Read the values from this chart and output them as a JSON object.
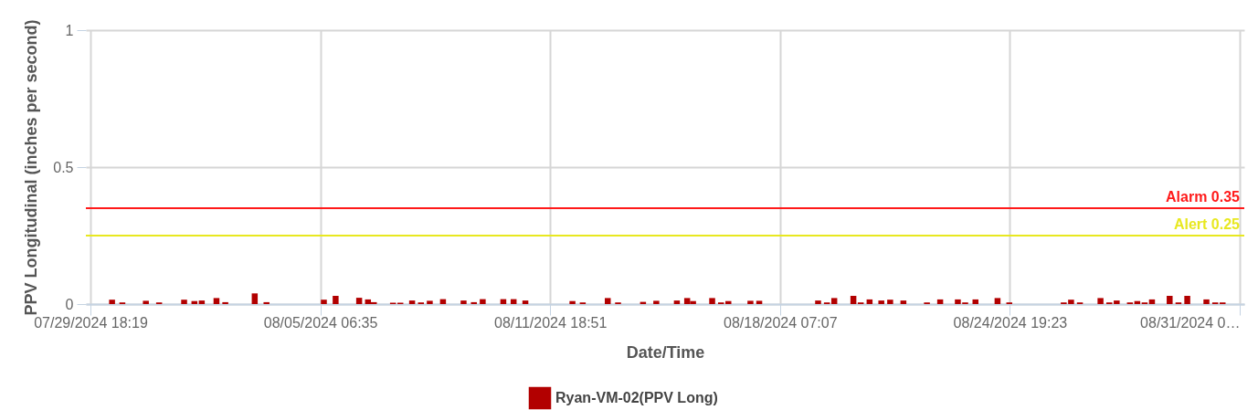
{
  "chart_data": {
    "type": "bar",
    "xlabel": "Date/Time",
    "ylabel": "PPV Longitudinal (inches per second)",
    "x": [
      "2024-07-30T09:00",
      "2024-07-30T16:00",
      "2024-07-31T08:00",
      "2024-07-31T17:00",
      "2024-08-01T10:00",
      "2024-08-01T17:00",
      "2024-08-01T22:00",
      "2024-08-02T08:00",
      "2024-08-02T14:00",
      "2024-08-03T10:00",
      "2024-08-03T18:00",
      "2024-08-05T09:00",
      "2024-08-05T17:00",
      "2024-08-06T09:00",
      "2024-08-06T15:00",
      "2024-08-06T19:00",
      "2024-08-07T08:00",
      "2024-08-07T13:00",
      "2024-08-07T21:00",
      "2024-08-08T03:00",
      "2024-08-08T09:00",
      "2024-08-08T18:00",
      "2024-08-09T08:00",
      "2024-08-09T15:00",
      "2024-08-09T21:00",
      "2024-08-10T11:00",
      "2024-08-10T18:00",
      "2024-08-11T02:00",
      "2024-08-12T10:00",
      "2024-08-12T17:00",
      "2024-08-13T10:00",
      "2024-08-13T17:00",
      "2024-08-14T10:00",
      "2024-08-14T19:00",
      "2024-08-15T09:00",
      "2024-08-15T16:00",
      "2024-08-15T20:00",
      "2024-08-16T09:00",
      "2024-08-16T15:00",
      "2024-08-16T20:00",
      "2024-08-17T11:00",
      "2024-08-17T17:00",
      "2024-08-19T09:00",
      "2024-08-19T15:00",
      "2024-08-19T20:00",
      "2024-08-20T09:00",
      "2024-08-20T14:00",
      "2024-08-20T20:00",
      "2024-08-21T04:00",
      "2024-08-21T10:00",
      "2024-08-21T19:00",
      "2024-08-22T11:00",
      "2024-08-22T20:00",
      "2024-08-23T08:00",
      "2024-08-23T13:00",
      "2024-08-23T20:00",
      "2024-08-24T11:00",
      "2024-08-24T19:00",
      "2024-08-26T08:00",
      "2024-08-26T13:00",
      "2024-08-26T19:00",
      "2024-08-27T09:00",
      "2024-08-27T15:00",
      "2024-08-27T20:00",
      "2024-08-28T05:00",
      "2024-08-28T10:00",
      "2024-08-28T15:00",
      "2024-08-28T20:00",
      "2024-08-29T08:00",
      "2024-08-29T14:00",
      "2024-08-29T20:00",
      "2024-08-30T09:00",
      "2024-08-30T15:00",
      "2024-08-30T20:00"
    ],
    "series": [
      {
        "name": "Ryan-VM-02(PPV Long)",
        "color": "#b20000",
        "values": [
          0.016,
          0.006,
          0.012,
          0.006,
          0.016,
          0.011,
          0.013,
          0.022,
          0.007,
          0.039,
          0.007,
          0.016,
          0.03,
          0.023,
          0.017,
          0.007,
          0.005,
          0.005,
          0.013,
          0.006,
          0.012,
          0.018,
          0.013,
          0.007,
          0.018,
          0.018,
          0.018,
          0.013,
          0.011,
          0.006,
          0.022,
          0.006,
          0.008,
          0.012,
          0.013,
          0.022,
          0.011,
          0.022,
          0.006,
          0.011,
          0.012,
          0.012,
          0.013,
          0.006,
          0.022,
          0.03,
          0.006,
          0.017,
          0.013,
          0.016,
          0.013,
          0.006,
          0.017,
          0.017,
          0.006,
          0.017,
          0.022,
          0.006,
          0.006,
          0.016,
          0.006,
          0.022,
          0.006,
          0.013,
          0.006,
          0.011,
          0.006,
          0.017,
          0.03,
          0.006,
          0.03,
          0.017,
          0.006,
          0.006
        ]
      }
    ],
    "xlim": [
      "2024-07-29T18:19",
      "2024-08-31T07:39"
    ],
    "xticks": [
      {
        "value": "2024-07-29T18:19",
        "label": "07/29/2024 18:19"
      },
      {
        "value": "2024-08-05T06:35",
        "label": "08/05/2024 06:35"
      },
      {
        "value": "2024-08-11T18:51",
        "label": "08/11/2024 18:51"
      },
      {
        "value": "2024-08-18T07:07",
        "label": "08/18/2024 07:07"
      },
      {
        "value": "2024-08-24T19:23",
        "label": "08/24/2024 19:23"
      },
      {
        "value": "2024-08-31T07:39",
        "label": "08/31/2024 0…"
      }
    ],
    "ylim": [
      0,
      1
    ],
    "yticks": [
      0,
      0.5,
      1
    ],
    "ref_lines": [
      {
        "axis": "y",
        "value": 0.35,
        "label": "Alarm 0.35",
        "color": "#ff1a1a"
      },
      {
        "axis": "y",
        "value": 0.25,
        "label": "Alert 0.25",
        "color": "#e8e820"
      }
    ],
    "grid": true,
    "legend": "bottom"
  }
}
